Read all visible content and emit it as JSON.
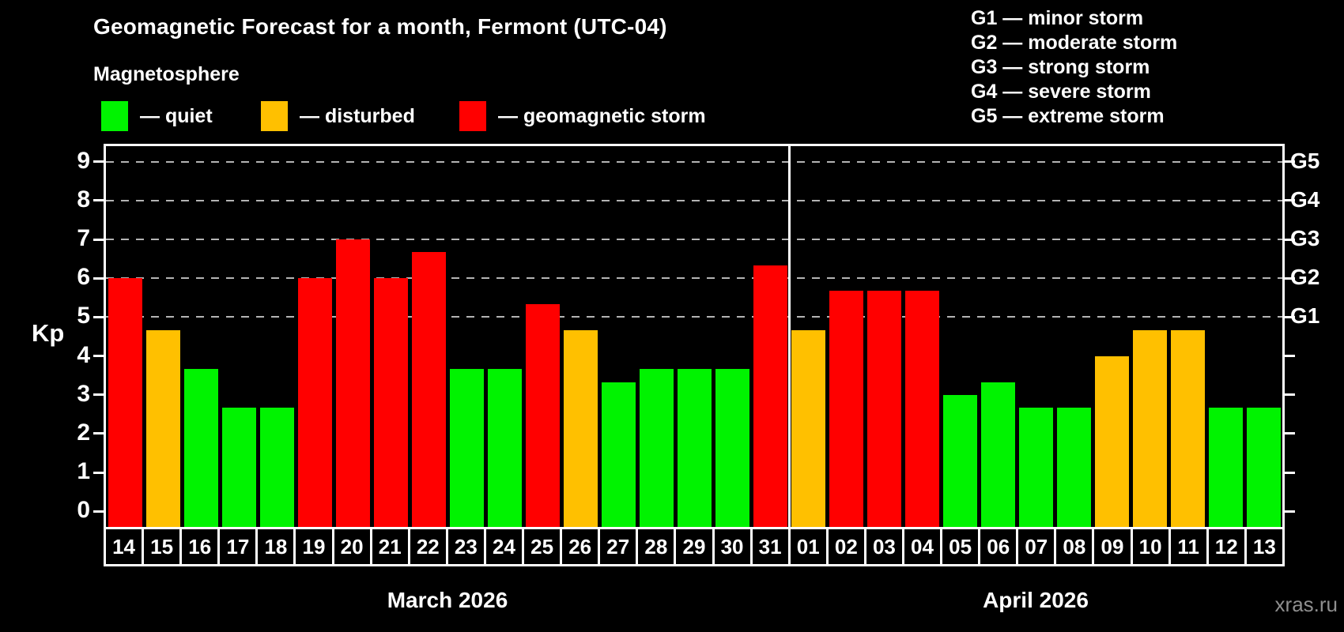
{
  "title": "Geomagnetic Forecast for a month, Fermont (UTC-04)",
  "subtitle": "Magnetosphere",
  "legend": {
    "items": [
      {
        "key": "quiet",
        "label": "— quiet",
        "color": "#00f300"
      },
      {
        "key": "disturbed",
        "label": "— disturbed",
        "color": "#ffc000"
      },
      {
        "key": "storm",
        "label": "— geomagnetic storm",
        "color": "#ff0000"
      }
    ]
  },
  "g_legend": [
    "G1 — minor storm",
    "G2 — moderate storm",
    "G3 — strong storm",
    "G4 — severe storm",
    "G5 — extreme storm"
  ],
  "y_axis": {
    "label": "Kp",
    "ticks": [
      0,
      1,
      2,
      3,
      4,
      5,
      6,
      7,
      8,
      9
    ]
  },
  "right_axis": {
    "ticks": [
      0,
      1,
      2,
      3,
      4,
      5,
      6,
      7,
      8,
      9
    ],
    "labels": [
      {
        "text": "G1",
        "value": 5
      },
      {
        "text": "G2",
        "value": 6
      },
      {
        "text": "G3",
        "value": 7
      },
      {
        "text": "G4",
        "value": 8
      },
      {
        "text": "G5",
        "value": 9
      }
    ]
  },
  "watermark": "xras.ru",
  "chart_data": {
    "type": "bar",
    "title": "Geomagnetic Forecast for a month, Fermont (UTC-04)",
    "ylabel": "Kp",
    "ylim": [
      -0.4,
      9.4
    ],
    "gridlines": [
      5,
      6,
      7,
      8,
      9
    ],
    "grid_style": "dashed",
    "legend_position": "top",
    "status_colors": {
      "quiet": "#00f300",
      "disturbed": "#ffc000",
      "storm": "#ff0000"
    },
    "months": [
      {
        "label": "March 2026",
        "days": [
          {
            "day": "14",
            "kp": 6.0,
            "status": "storm"
          },
          {
            "day": "15",
            "kp": 4.67,
            "status": "disturbed"
          },
          {
            "day": "16",
            "kp": 3.67,
            "status": "quiet"
          },
          {
            "day": "17",
            "kp": 2.67,
            "status": "quiet"
          },
          {
            "day": "18",
            "kp": 2.67,
            "status": "quiet"
          },
          {
            "day": "19",
            "kp": 6.0,
            "status": "storm"
          },
          {
            "day": "20",
            "kp": 7.0,
            "status": "storm"
          },
          {
            "day": "21",
            "kp": 6.0,
            "status": "storm"
          },
          {
            "day": "22",
            "kp": 6.67,
            "status": "storm"
          },
          {
            "day": "23",
            "kp": 3.67,
            "status": "quiet"
          },
          {
            "day": "24",
            "kp": 3.67,
            "status": "quiet"
          },
          {
            "day": "25",
            "kp": 5.33,
            "status": "storm"
          },
          {
            "day": "26",
            "kp": 4.67,
            "status": "disturbed"
          },
          {
            "day": "27",
            "kp": 3.33,
            "status": "quiet"
          },
          {
            "day": "28",
            "kp": 3.67,
            "status": "quiet"
          },
          {
            "day": "29",
            "kp": 3.67,
            "status": "quiet"
          },
          {
            "day": "30",
            "kp": 3.67,
            "status": "quiet"
          },
          {
            "day": "31",
            "kp": 6.33,
            "status": "storm"
          }
        ]
      },
      {
        "label": "April 2026",
        "days": [
          {
            "day": "01",
            "kp": 4.67,
            "status": "disturbed"
          },
          {
            "day": "02",
            "kp": 5.67,
            "status": "storm"
          },
          {
            "day": "03",
            "kp": 5.67,
            "status": "storm"
          },
          {
            "day": "04",
            "kp": 5.67,
            "status": "storm"
          },
          {
            "day": "05",
            "kp": 3.0,
            "status": "quiet"
          },
          {
            "day": "06",
            "kp": 3.33,
            "status": "quiet"
          },
          {
            "day": "07",
            "kp": 2.67,
            "status": "quiet"
          },
          {
            "day": "08",
            "kp": 2.67,
            "status": "quiet"
          },
          {
            "day": "09",
            "kp": 4.0,
            "status": "disturbed"
          },
          {
            "day": "10",
            "kp": 4.67,
            "status": "disturbed"
          },
          {
            "day": "11",
            "kp": 4.67,
            "status": "disturbed"
          },
          {
            "day": "12",
            "kp": 2.67,
            "status": "quiet"
          },
          {
            "day": "13",
            "kp": 2.67,
            "status": "quiet"
          }
        ]
      }
    ]
  }
}
